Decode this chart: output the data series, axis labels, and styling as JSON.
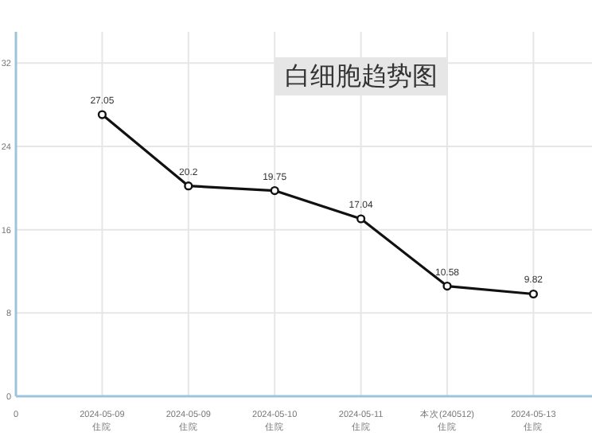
{
  "chart_data": {
    "type": "line",
    "title": "白细胞趋势图",
    "categories": [
      "0",
      "2024-05-09\n住院",
      "2024-05-09\n住院",
      "2024-05-10\n住院",
      "2024-05-11\n住院",
      "本次(240512)\n住院",
      "2024-05-13\n住院"
    ],
    "series": [
      {
        "color": "#111111",
        "values": [
          null,
          27.05,
          20.2,
          19.75,
          17.04,
          10.58,
          9.82
        ]
      }
    ],
    "ylim": [
      0,
      35
    ],
    "yticks": [
      0,
      8,
      16,
      24,
      32
    ],
    "grid": true,
    "marker": "circle",
    "line_style": "solid",
    "data_labels": true
  }
}
